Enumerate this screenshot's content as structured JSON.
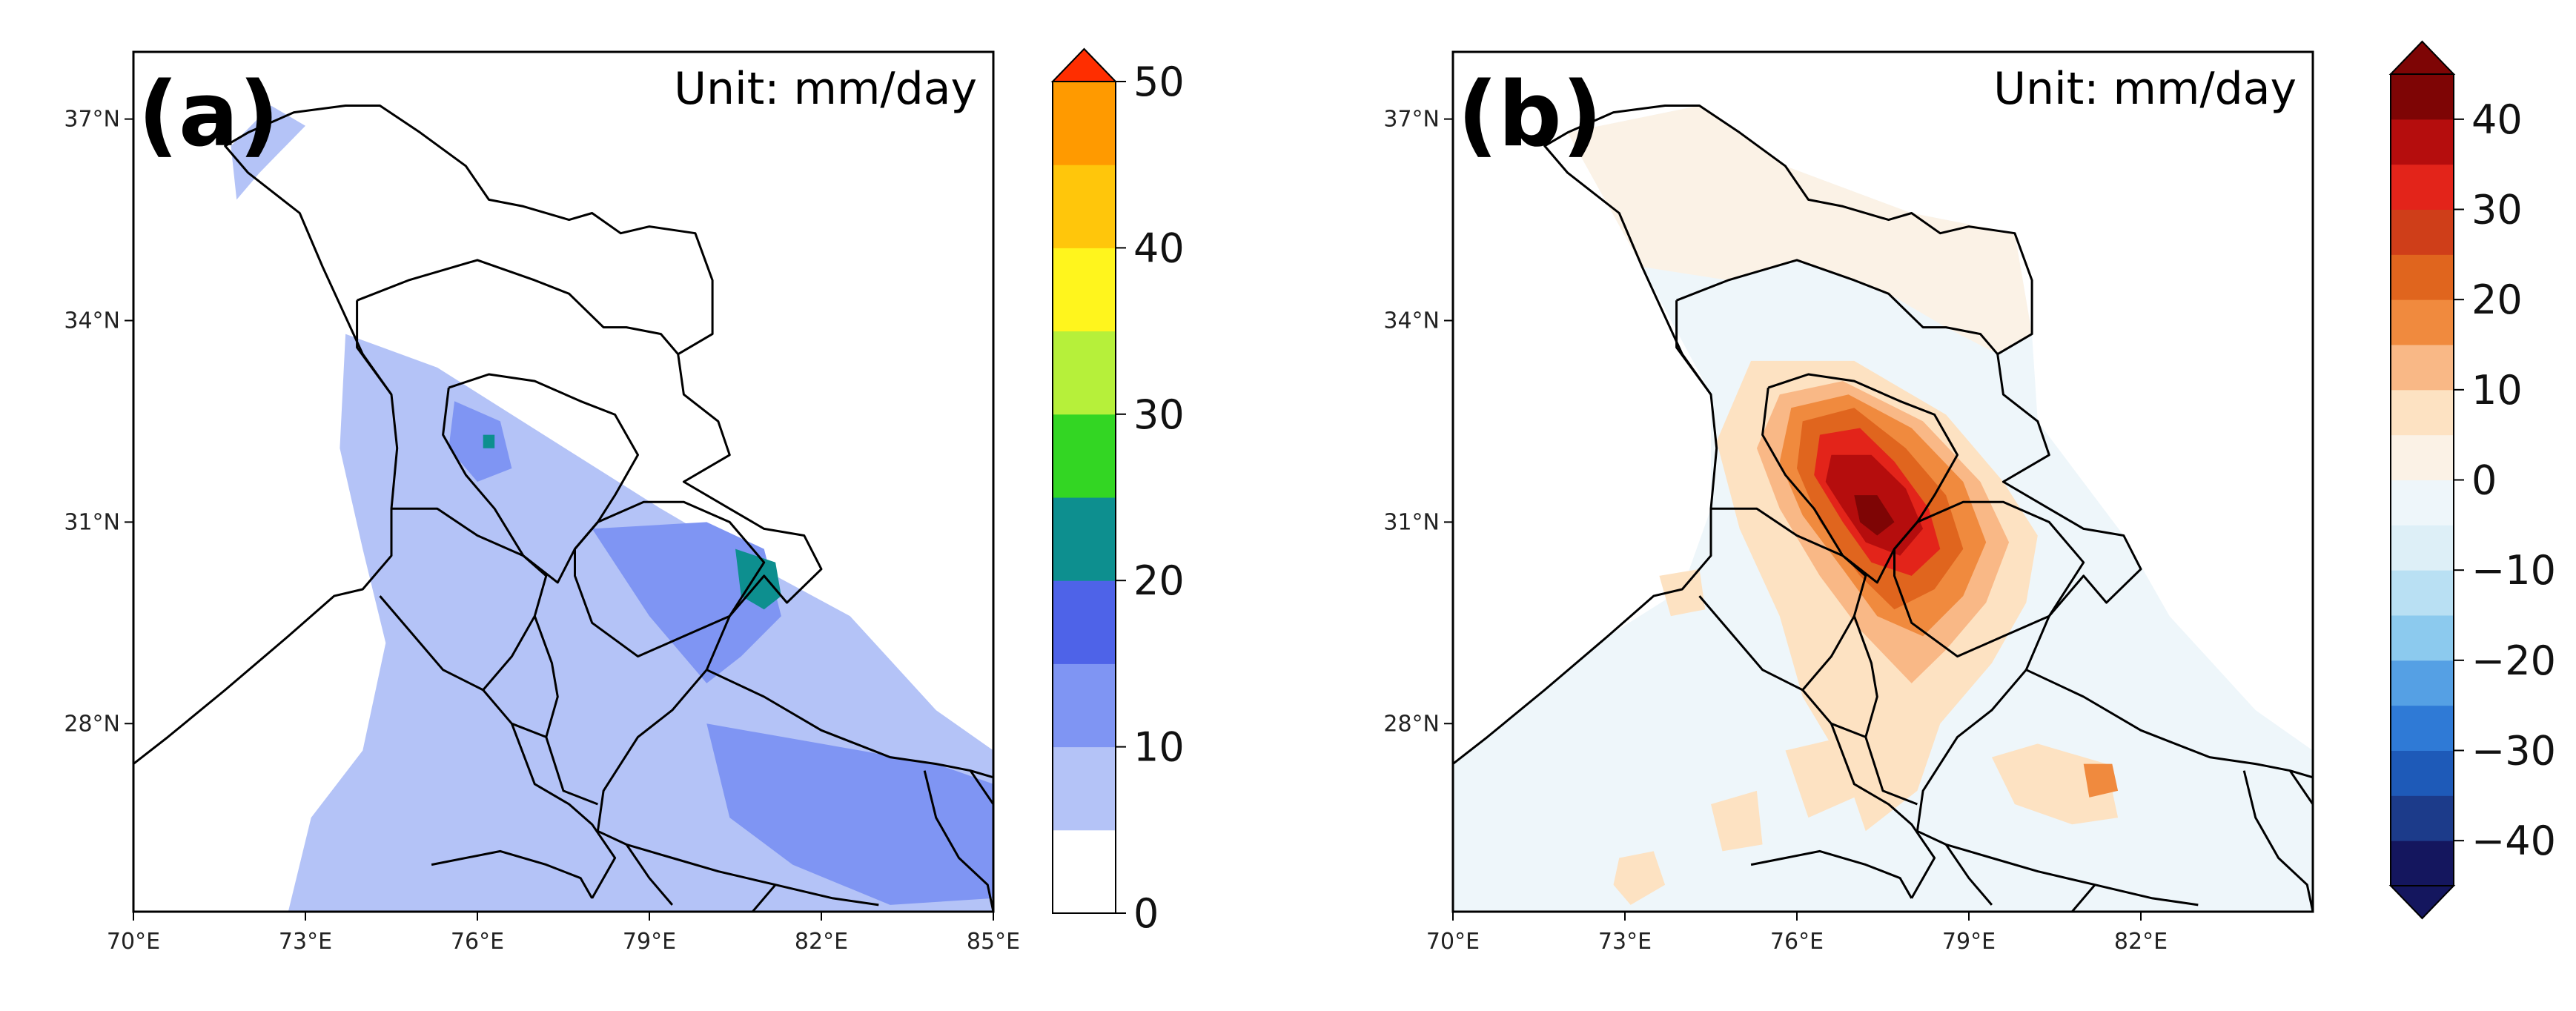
{
  "chart_data": [
    {
      "type": "heatmap",
      "panel_label": "(a)",
      "unit_text": "Unit: mm/day",
      "x_ticks": [
        "70°E",
        "73°E",
        "76°E",
        "79°E",
        "82°E",
        "85°E"
      ],
      "x_tick_values": [
        70,
        73,
        76,
        79,
        82,
        85
      ],
      "y_ticks": [
        "37°N",
        "34°N",
        "31°N",
        "28°N"
      ],
      "y_tick_values": [
        37,
        34,
        31,
        28
      ],
      "xlim": [
        70,
        85
      ],
      "ylim": [
        25.2,
        38
      ],
      "colorbar": {
        "levels": [
          0,
          5,
          10,
          15,
          20,
          25,
          30,
          35,
          40,
          45,
          50
        ],
        "tick_labels": [
          "0",
          "10",
          "20",
          "30",
          "40",
          "50"
        ],
        "tick_values": [
          0,
          10,
          20,
          30,
          40,
          50
        ],
        "colors": [
          "#ffffff",
          "#b4c3f7",
          "#7f95f3",
          "#4e63e8",
          "#0d8f8f",
          "#33d623",
          "#b6f03a",
          "#fff51d",
          "#ffc60b",
          "#ff9a00",
          "#ff2e00"
        ],
        "extend": "max"
      },
      "fields": [
        {
          "value": 7,
          "lonlat": [
            [
              71.7,
              36.6
            ],
            [
              72.4,
              37.2
            ],
            [
              73.0,
              36.9
            ],
            [
              72.2,
              36.2
            ],
            [
              71.8,
              35.8
            ]
          ]
        },
        {
          "value": 7,
          "lonlat": [
            [
              73.7,
              33.8
            ],
            [
              75.3,
              33.3
            ],
            [
              76.6,
              32.6
            ],
            [
              79.2,
              31.2
            ],
            [
              81.2,
              30.2
            ],
            [
              82.5,
              29.6
            ],
            [
              84.0,
              28.2
            ],
            [
              85.0,
              27.6
            ],
            [
              85.0,
              25.2
            ],
            [
              72.7,
              25.2
            ],
            [
              73.1,
              26.6
            ],
            [
              74.0,
              27.6
            ],
            [
              74.4,
              29.2
            ],
            [
              74.0,
              30.6
            ],
            [
              73.6,
              32.1
            ]
          ]
        },
        {
          "value": 12,
          "lonlat": [
            [
              78.0,
              30.9
            ],
            [
              80.0,
              31.0
            ],
            [
              81.0,
              30.6
            ],
            [
              81.3,
              29.6
            ],
            [
              80.6,
              29.0
            ],
            [
              80.0,
              28.6
            ],
            [
              79.0,
              29.6
            ]
          ]
        },
        {
          "value": 12,
          "lonlat": [
            [
              80.0,
              28.0
            ],
            [
              82.0,
              27.7
            ],
            [
              84.0,
              27.4
            ],
            [
              85.0,
              27.1
            ],
            [
              85.0,
              25.4
            ],
            [
              83.2,
              25.3
            ],
            [
              81.5,
              25.9
            ],
            [
              80.4,
              26.6
            ]
          ]
        },
        {
          "value": 12,
          "lonlat": [
            [
              75.6,
              32.8
            ],
            [
              76.4,
              32.5
            ],
            [
              76.6,
              31.8
            ],
            [
              76.0,
              31.6
            ],
            [
              75.5,
              32.1
            ]
          ]
        },
        {
          "value": 22,
          "lonlat": [
            [
              80.5,
              30.6
            ],
            [
              81.2,
              30.4
            ],
            [
              81.3,
              29.9
            ],
            [
              81.0,
              29.7
            ],
            [
              80.6,
              29.9
            ]
          ]
        },
        {
          "value": 22,
          "lonlat": [
            [
              76.1,
              32.3
            ],
            [
              76.3,
              32.3
            ],
            [
              76.3,
              32.1
            ],
            [
              76.1,
              32.1
            ]
          ]
        }
      ]
    },
    {
      "type": "heatmap",
      "panel_label": "(b)",
      "unit_text": "Unit: mm/day",
      "x_ticks": [
        "70°E",
        "73°E",
        "76°E",
        "79°E",
        "82°E"
      ],
      "x_tick_values": [
        70,
        73,
        76,
        79,
        82
      ],
      "y_ticks": [
        "37°N",
        "34°N",
        "31°N",
        "28°N"
      ],
      "y_tick_values": [
        37,
        34,
        31,
        28
      ],
      "xlim": [
        70,
        85
      ],
      "ylim": [
        25.2,
        38
      ],
      "colorbar": {
        "levels": [
          -45,
          -40,
          -35,
          -30,
          -25,
          -20,
          -15,
          -10,
          -5,
          0,
          5,
          10,
          15,
          20,
          25,
          30,
          35,
          40,
          45
        ],
        "tick_labels": [
          "40",
          "30",
          "20",
          "10",
          "0",
          "−10",
          "−20",
          "−30",
          "−40"
        ],
        "tick_values": [
          40,
          30,
          20,
          10,
          0,
          -10,
          -20,
          -30,
          -40
        ],
        "colors": [
          "#14165e",
          "#1c3b8a",
          "#1e5ab8",
          "#2f7ad6",
          "#55a0e4",
          "#8ccaee",
          "#b9e0f3",
          "#ddeff7",
          "#eef6fa",
          "#fbf2e6",
          "#fde2c2",
          "#f9b886",
          "#f08a3e",
          "#e0651e",
          "#cf3e19",
          "#e3241a",
          "#b50d0d",
          "#7e0505"
        ],
        "extend": "both"
      },
      "fields": [
        {
          "value": -3,
          "lonlat": [
            [
              70.0,
              27.4
            ],
            [
              72.7,
              29.3
            ],
            [
              74.0,
              30.0
            ],
            [
              74.5,
              31.2
            ],
            [
              74.5,
              32.9
            ],
            [
              73.3,
              34.8
            ],
            [
              72.0,
              36.8
            ],
            [
              74.3,
              37.2
            ],
            [
              75.8,
              36.3
            ],
            [
              78.0,
              35.6
            ],
            [
              79.8,
              35.3
            ],
            [
              80.1,
              33.8
            ],
            [
              80.2,
              32.5
            ],
            [
              81.7,
              30.8
            ],
            [
              82.5,
              29.6
            ],
            [
              84.0,
              28.2
            ],
            [
              85.0,
              27.6
            ],
            [
              85.0,
              25.2
            ],
            [
              70.0,
              25.2
            ]
          ]
        },
        {
          "value": 3,
          "lonlat": [
            [
              73.3,
              34.8
            ],
            [
              72.0,
              36.8
            ],
            [
              74.3,
              37.2
            ],
            [
              75.8,
              36.3
            ],
            [
              78.0,
              35.6
            ],
            [
              79.8,
              35.3
            ],
            [
              80.1,
              33.8
            ],
            [
              79.5,
              33.5
            ],
            [
              78.6,
              33.9
            ],
            [
              77.6,
              34.4
            ],
            [
              76.0,
              34.9
            ],
            [
              74.8,
              34.6
            ]
          ]
        },
        {
          "value": 7,
          "lonlat": [
            [
              75.2,
              33.4
            ],
            [
              77.0,
              33.4
            ],
            [
              78.6,
              32.6
            ],
            [
              79.6,
              31.6
            ],
            [
              80.2,
              30.8
            ],
            [
              80.0,
              29.8
            ],
            [
              79.4,
              28.9
            ],
            [
              78.5,
              28.0
            ],
            [
              78.1,
              27.0
            ],
            [
              77.2,
              26.4
            ],
            [
              76.8,
              27.4
            ],
            [
              76.1,
              28.4
            ],
            [
              75.7,
              29.6
            ],
            [
              75.0,
              30.9
            ],
            [
              74.6,
              32.2
            ]
          ]
        },
        {
          "value": 7,
          "lonlat": [
            [
              72.9,
              26.0
            ],
            [
              73.5,
              26.1
            ],
            [
              73.7,
              25.6
            ],
            [
              73.1,
              25.3
            ],
            [
              72.8,
              25.6
            ]
          ]
        },
        {
          "value": 7,
          "lonlat": [
            [
              73.6,
              30.2
            ],
            [
              74.3,
              30.3
            ],
            [
              74.4,
              29.7
            ],
            [
              73.8,
              29.6
            ]
          ]
        },
        {
          "value": 7,
          "lonlat": [
            [
              79.4,
              27.5
            ],
            [
              80.2,
              27.7
            ],
            [
              81.4,
              27.4
            ],
            [
              81.6,
              26.6
            ],
            [
              80.8,
              26.5
            ],
            [
              79.8,
              26.8
            ]
          ]
        },
        {
          "value": 7,
          "lonlat": [
            [
              75.8,
              27.6
            ],
            [
              76.8,
              27.8
            ],
            [
              77.0,
              26.9
            ],
            [
              76.2,
              26.6
            ]
          ]
        },
        {
          "value": 7,
          "lonlat": [
            [
              74.5,
              26.8
            ],
            [
              75.3,
              27.0
            ],
            [
              75.4,
              26.2
            ],
            [
              74.7,
              26.1
            ]
          ]
        },
        {
          "value": 12,
          "lonlat": [
            [
              75.7,
              32.9
            ],
            [
              76.8,
              33.1
            ],
            [
              78.2,
              32.5
            ],
            [
              79.2,
              31.6
            ],
            [
              79.7,
              30.7
            ],
            [
              79.3,
              29.8
            ],
            [
              78.6,
              29.1
            ],
            [
              78.0,
              28.6
            ],
            [
              77.1,
              29.4
            ],
            [
              76.4,
              30.2
            ],
            [
              75.7,
              31.2
            ],
            [
              75.3,
              32.1
            ]
          ]
        },
        {
          "value": 17,
          "lonlat": [
            [
              75.9,
              32.7
            ],
            [
              76.9,
              32.9
            ],
            [
              78.0,
              32.4
            ],
            [
              78.9,
              31.6
            ],
            [
              79.3,
              30.7
            ],
            [
              78.9,
              29.9
            ],
            [
              78.2,
              29.3
            ],
            [
              77.4,
              29.6
            ],
            [
              76.8,
              30.3
            ],
            [
              76.1,
              31.1
            ],
            [
              75.7,
              31.9
            ]
          ]
        },
        {
          "value": 17,
          "lonlat": [
            [
              81.0,
              27.4
            ],
            [
              81.5,
              27.4
            ],
            [
              81.6,
              27.0
            ],
            [
              81.1,
              26.9
            ]
          ]
        },
        {
          "value": 22,
          "lonlat": [
            [
              76.1,
              32.5
            ],
            [
              77.0,
              32.7
            ],
            [
              77.9,
              32.1
            ],
            [
              78.6,
              31.4
            ],
            [
              78.9,
              30.6
            ],
            [
              78.4,
              30.0
            ],
            [
              77.7,
              29.7
            ],
            [
              77.1,
              30.2
            ],
            [
              76.4,
              31.0
            ],
            [
              76.0,
              31.8
            ]
          ]
        },
        {
          "value": 32,
          "lonlat": [
            [
              76.4,
              32.3
            ],
            [
              77.1,
              32.4
            ],
            [
              77.7,
              31.9
            ],
            [
              78.3,
              31.2
            ],
            [
              78.5,
              30.6
            ],
            [
              78.0,
              30.2
            ],
            [
              77.3,
              30.4
            ],
            [
              76.8,
              31.0
            ],
            [
              76.3,
              31.7
            ]
          ]
        },
        {
          "value": 37,
          "lonlat": [
            [
              76.6,
              32.0
            ],
            [
              77.3,
              32.0
            ],
            [
              77.9,
              31.5
            ],
            [
              78.2,
              30.9
            ],
            [
              77.8,
              30.5
            ],
            [
              77.2,
              30.7
            ],
            [
              76.8,
              31.2
            ],
            [
              76.5,
              31.6
            ]
          ]
        },
        {
          "value": 42,
          "lonlat": [
            [
              77.0,
              31.4
            ],
            [
              77.4,
              31.4
            ],
            [
              77.7,
              31.0
            ],
            [
              77.4,
              30.8
            ],
            [
              77.1,
              31.0
            ]
          ]
        }
      ]
    }
  ]
}
